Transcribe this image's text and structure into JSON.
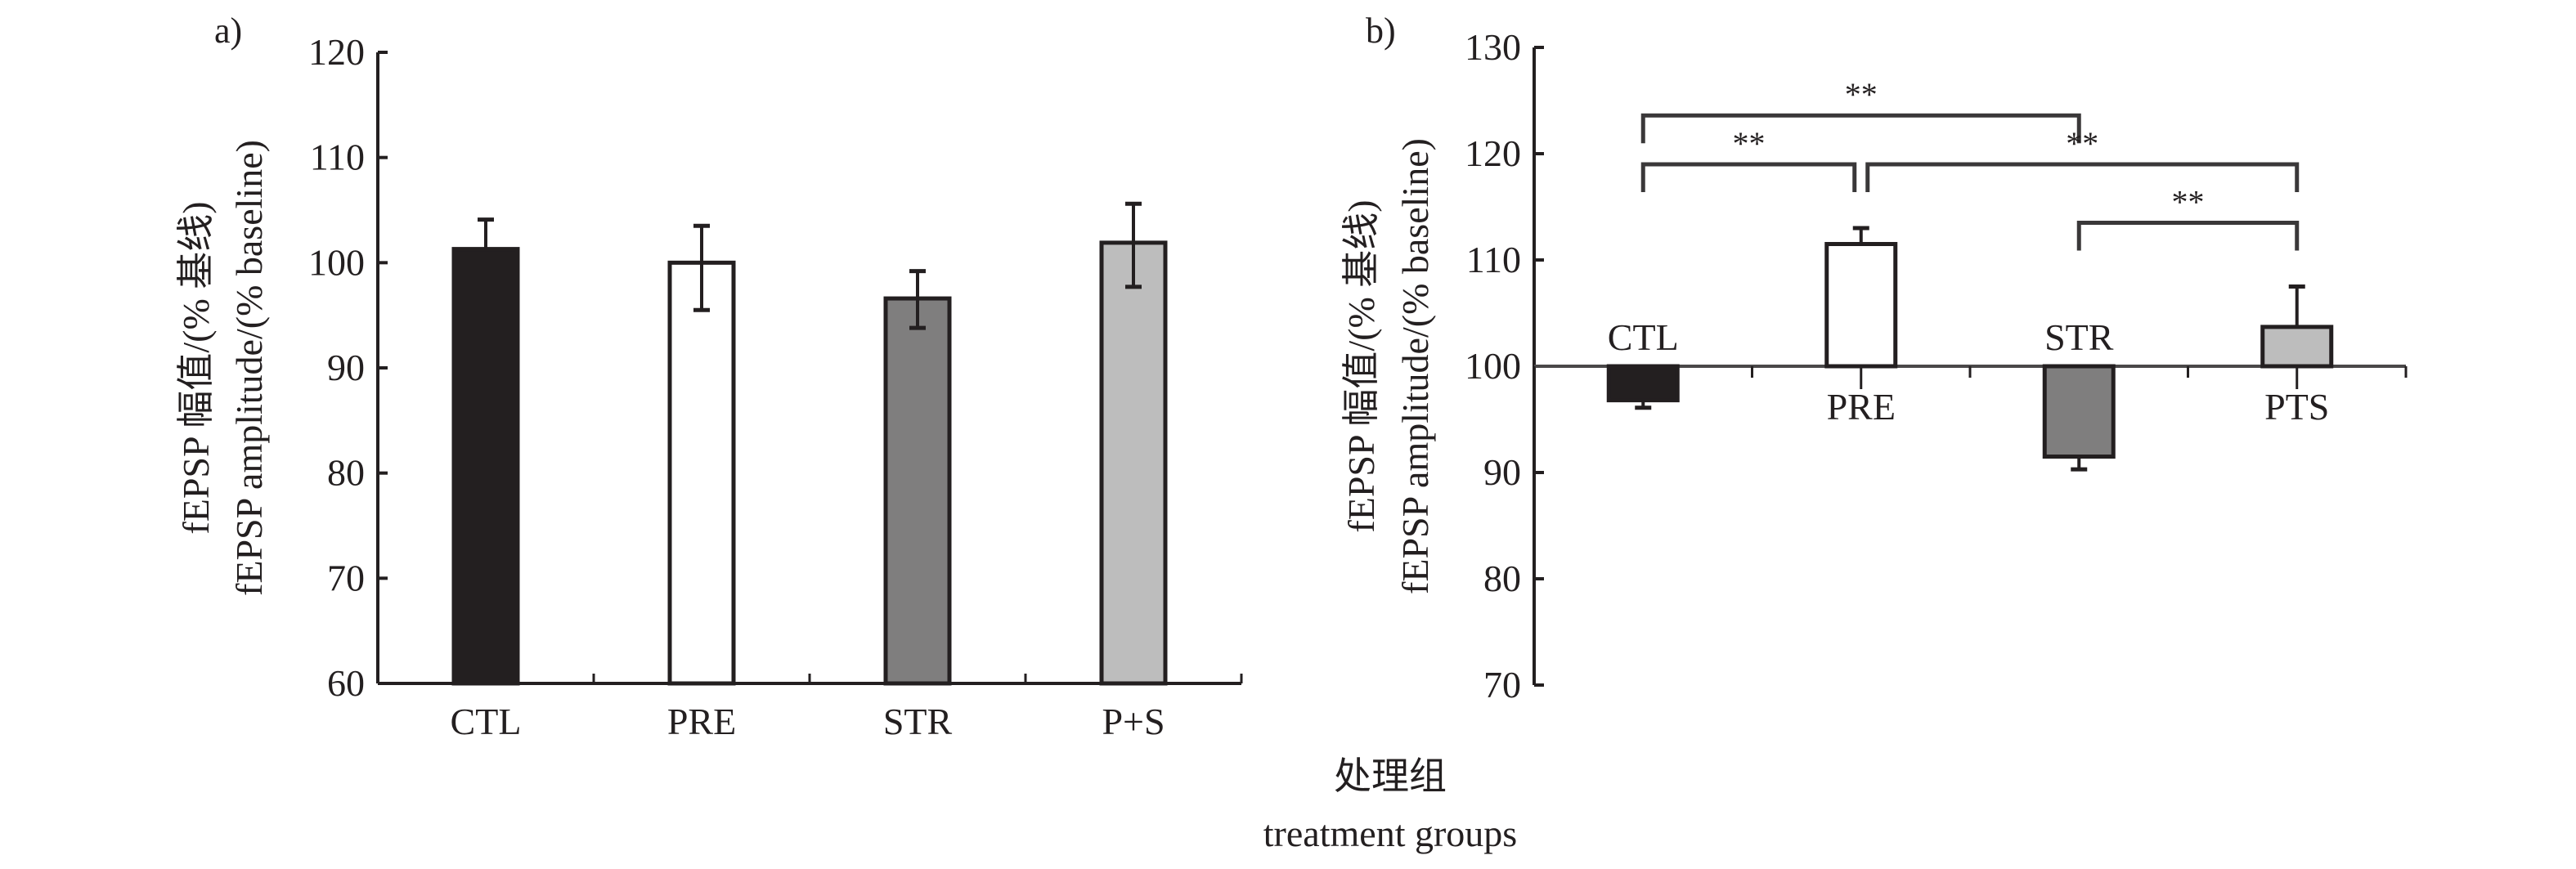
{
  "x_axis_label_cn": "处理组",
  "x_axis_label_en": "treatment groups",
  "chart_data": [
    {
      "type": "bar",
      "panel_label": "a)",
      "title": "",
      "ylabel_cn": "fEPSP 幅值/(% 基线)",
      "ylabel_en": "fEPSP amplitude/(% baseline)",
      "ylim": [
        60,
        120
      ],
      "yticks": [
        60,
        70,
        80,
        90,
        100,
        110,
        120
      ],
      "baseline": 60,
      "categories": [
        "CTL",
        "PRE",
        "STR",
        "P+S"
      ],
      "values": [
        101.3,
        100.0,
        96.6,
        101.9
      ],
      "error_upper": [
        104.1,
        103.5,
        99.2,
        105.6
      ],
      "error_lower": [
        null,
        95.5,
        93.8,
        97.7
      ],
      "colors": [
        "#231f20",
        "#ffffff",
        "#7f7e7e",
        "#bdbdbd"
      ],
      "grid": false
    },
    {
      "type": "bar",
      "panel_label": "b)",
      "title": "",
      "ylabel_cn": "fEPSP 幅值/(% 基线)",
      "ylabel_en": "fEPSP amplitude/(% baseline)",
      "ylim": [
        70,
        130
      ],
      "yticks": [
        70,
        80,
        90,
        100,
        110,
        120,
        130
      ],
      "baseline": 100,
      "categories": [
        "CTL",
        "PRE",
        "STR",
        "PTS"
      ],
      "values": [
        96.8,
        111.5,
        91.5,
        103.7
      ],
      "error_extent": [
        96.1,
        113.0,
        90.3,
        107.5
      ],
      "colors": [
        "#231f20",
        "#ffffff",
        "#7f7e7e",
        "#bdbdbd"
      ],
      "grid": false,
      "significance": [
        {
          "from": "CTL",
          "to": "STR",
          "y": 123.6,
          "label": "**"
        },
        {
          "from": "CTL",
          "to": "PRE",
          "y": 119.0,
          "label": "**"
        },
        {
          "from": "PRE",
          "to": "PTS",
          "y": 119.0,
          "label": "**"
        },
        {
          "from": "STR",
          "to": "PTS",
          "y": 113.5,
          "label": "**"
        }
      ]
    }
  ]
}
